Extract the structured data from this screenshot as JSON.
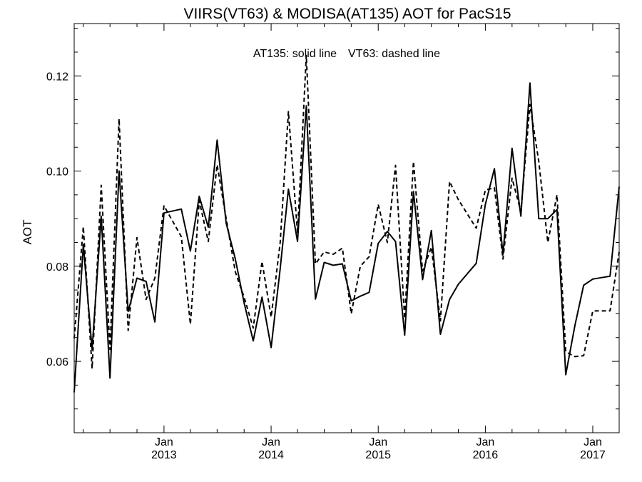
{
  "chart_data": {
    "type": "line",
    "title": "VIIRS(VT63) & MODISA(AT135)  AOT for PacS15",
    "annotation_left": "AT135: solid line",
    "annotation_right": "VT63: dashed line",
    "ylabel": "AOT",
    "xlabel": "",
    "ylim": [
      0.045,
      0.131
    ],
    "xlim": [
      "2012-03-01",
      "2017-04-01"
    ],
    "yticks": [
      "0.06",
      "0.08",
      "0.10",
      "0.12"
    ],
    "xticks": [
      {
        "date": "2013-01-01",
        "month": "Jan",
        "year": "2013"
      },
      {
        "date": "2014-01-01",
        "month": "Jan",
        "year": "2014"
      },
      {
        "date": "2015-01-01",
        "month": "Jan",
        "year": "2015"
      },
      {
        "date": "2016-01-01",
        "month": "Jan",
        "year": "2016"
      },
      {
        "date": "2017-01-01",
        "month": "Jan",
        "year": "2017"
      }
    ],
    "grid": false,
    "legend": "annotation text at top",
    "colors": {
      "line": "#000000",
      "axis": "#000000",
      "background": "#ffffff"
    },
    "series": [
      {
        "name": "AT135",
        "style": "solid",
        "x": [
          "2012-03",
          "2012-04",
          "2012-05",
          "2012-06",
          "2012-07",
          "2012-08",
          "2012-09",
          "2012-10",
          "2012-11",
          "2012-12",
          "2013-01",
          "2013-03",
          "2013-04",
          "2013-05",
          "2013-06",
          "2013-07",
          "2013-08",
          "2013-09",
          "2013-10",
          "2013-11",
          "2013-12",
          "2014-01",
          "2014-02",
          "2014-03",
          "2014-04",
          "2014-05",
          "2014-06",
          "2014-07",
          "2014-08",
          "2014-09",
          "2014-10",
          "2014-11",
          "2014-12",
          "2015-01",
          "2015-02",
          "2015-03",
          "2015-04",
          "2015-05",
          "2015-06",
          "2015-07",
          "2015-08",
          "2015-09",
          "2015-10",
          "2015-12",
          "2016-01",
          "2016-02",
          "2016-03",
          "2016-04",
          "2016-05",
          "2016-06",
          "2016-07",
          "2016-08",
          "2016-09",
          "2016-10",
          "2016-11",
          "2016-12",
          "2017-01",
          "2017-03",
          "2017-04"
        ],
        "values": [
          0.0535,
          0.0845,
          0.0625,
          0.0905,
          0.0565,
          0.1,
          0.0705,
          0.0775,
          0.0768,
          0.0683,
          0.0912,
          0.092,
          0.0832,
          0.0947,
          0.0882,
          0.1065,
          0.089,
          0.0815,
          0.0723,
          0.0643,
          0.0735,
          0.0629,
          0.0795,
          0.0962,
          0.0852,
          0.1137,
          0.0731,
          0.0808,
          0.0802,
          0.0805,
          0.0727,
          0.0737,
          0.0745,
          0.0848,
          0.0873,
          0.0852,
          0.0655,
          0.0957,
          0.0772,
          0.0875,
          0.0657,
          0.073,
          0.0762,
          0.0806,
          0.093,
          0.1005,
          0.0825,
          0.1048,
          0.0905,
          0.1185,
          0.09,
          0.09,
          0.0919,
          0.0572,
          0.0675,
          0.076,
          0.0773,
          0.0779,
          0.0967
        ]
      },
      {
        "name": "VT63",
        "style": "dashed",
        "x": [
          "2012-03",
          "2012-04",
          "2012-05",
          "2012-06",
          "2012-07",
          "2012-08",
          "2012-09",
          "2012-10",
          "2012-11",
          "2012-12",
          "2013-01",
          "2013-03",
          "2013-04",
          "2013-05",
          "2013-06",
          "2013-07",
          "2013-08",
          "2013-09",
          "2013-10",
          "2013-11",
          "2013-12",
          "2014-01",
          "2014-02",
          "2014-03",
          "2014-04",
          "2014-05",
          "2014-06",
          "2014-07",
          "2014-08",
          "2014-09",
          "2014-10",
          "2014-11",
          "2014-12",
          "2015-01",
          "2015-02",
          "2015-03",
          "2015-04",
          "2015-05",
          "2015-06",
          "2015-07",
          "2015-08",
          "2015-09",
          "2015-10",
          "2015-12",
          "2016-01",
          "2016-02",
          "2016-03",
          "2016-04",
          "2016-05",
          "2016-06",
          "2016-07",
          "2016-08",
          "2016-09",
          "2016-10",
          "2016-11",
          "2016-12",
          "2017-01",
          "2017-03",
          "2017-04"
        ],
        "values": [
          0.0648,
          0.0883,
          0.0585,
          0.097,
          0.0625,
          0.111,
          0.0665,
          0.086,
          0.073,
          0.0775,
          0.0927,
          0.0862,
          0.0678,
          0.0938,
          0.0852,
          0.1013,
          0.09,
          0.0788,
          0.0735,
          0.067,
          0.081,
          0.0693,
          0.085,
          0.1125,
          0.087,
          0.1243,
          0.0805,
          0.083,
          0.0825,
          0.0838,
          0.07,
          0.08,
          0.082,
          0.093,
          0.085,
          0.1012,
          0.069,
          0.102,
          0.079,
          0.084,
          0.0685,
          0.0978,
          0.094,
          0.088,
          0.096,
          0.0965,
          0.0815,
          0.0985,
          0.0915,
          0.114,
          0.102,
          0.085,
          0.095,
          0.062,
          0.061,
          0.0612,
          0.0706,
          0.0706,
          0.083
        ]
      }
    ]
  }
}
